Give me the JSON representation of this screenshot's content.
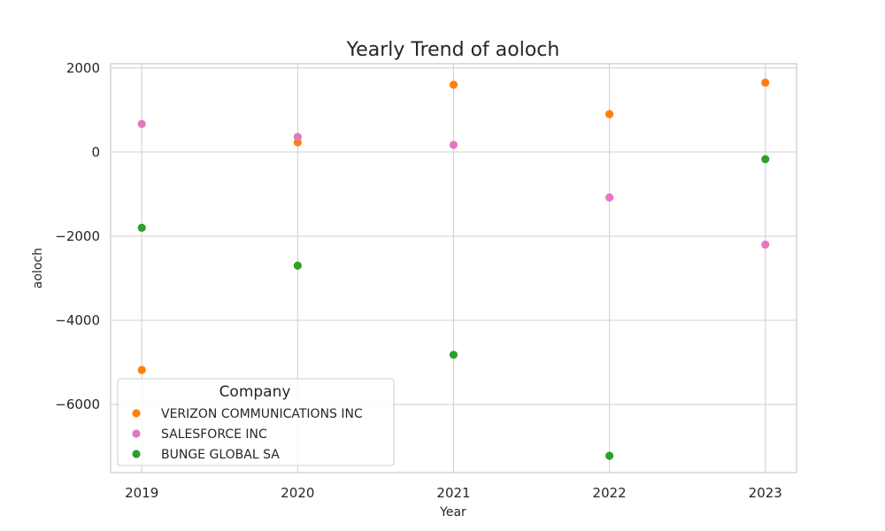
{
  "chart_data": {
    "type": "scatter",
    "title": "Yearly Trend of aoloch",
    "xlabel": "Year",
    "ylabel": "aoloch",
    "x": [
      2019,
      2020,
      2021,
      2022,
      2023
    ],
    "x_tick_labels": [
      "2019",
      "2020",
      "2021",
      "2022",
      "2023"
    ],
    "y_ticks": [
      2000,
      0,
      -2000,
      -4000,
      -6000
    ],
    "y_tick_labels": [
      "2000",
      "0",
      "−2000",
      "−4000",
      "−6000"
    ],
    "xlim": [
      2018.8,
      2023.2
    ],
    "ylim": [
      -7620,
      2100
    ],
    "grid": true,
    "legend": {
      "title": "Company",
      "placement": "lower-left"
    },
    "series": [
      {
        "name": "VERIZON COMMUNICATIONS INC",
        "color": "#ff7f0e",
        "values": [
          -5180,
          230,
          1600,
          900,
          1650
        ]
      },
      {
        "name": "SALESFORCE INC",
        "color": "#e377c2",
        "values": [
          670,
          360,
          170,
          -1080,
          -2200
        ]
      },
      {
        "name": "BUNGE GLOBAL SA",
        "color": "#2ca02c",
        "values": [
          -1800,
          -2700,
          -4820,
          -7220,
          -170
        ]
      }
    ]
  }
}
